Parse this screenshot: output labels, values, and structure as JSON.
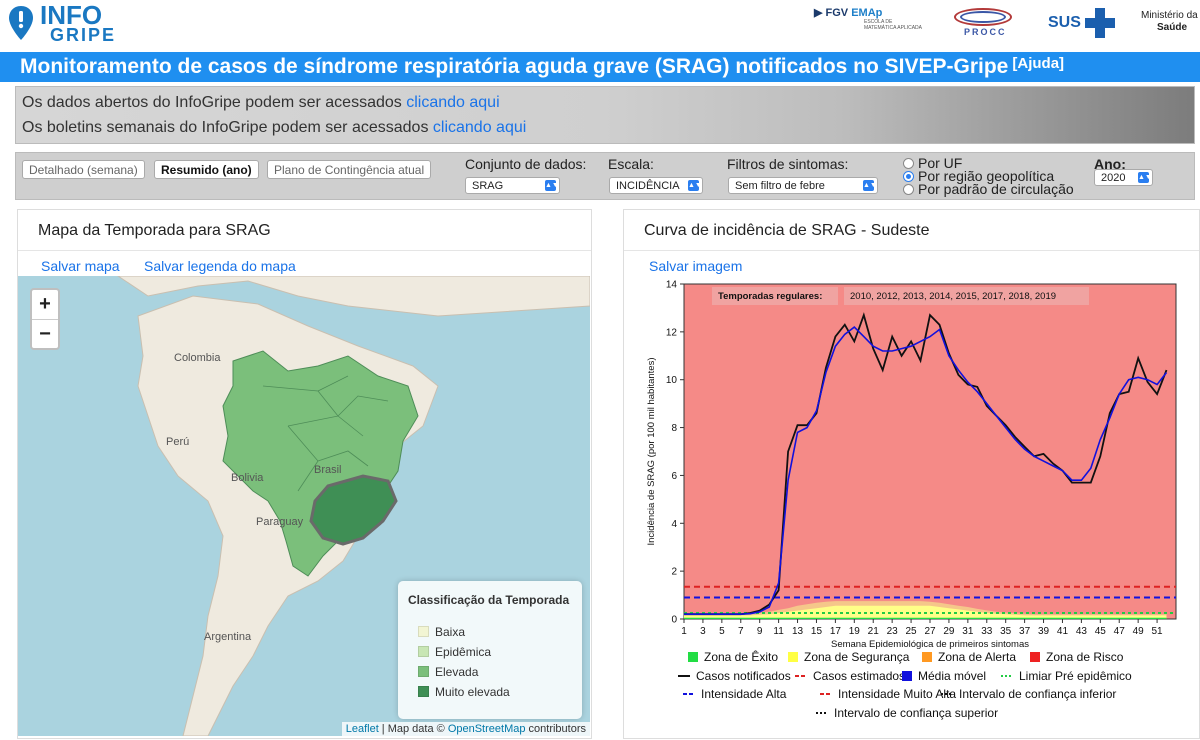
{
  "header": {
    "logo_top": "INFO",
    "logo_bottom": "GRIPE",
    "fgv": "FGV",
    "emap": "EMAp",
    "emap_sub": "ESCOLA DE MATEMÁTICA APLICADA",
    "procc": "PROCC",
    "sus": "SUS",
    "ministerio_1": "Ministério da",
    "ministerio_2": "Saúde"
  },
  "title": "Monitoramento de casos de síndrome respiratória aguda grave (SRAG) notificados no SIVEP-Gripe",
  "help_link": "[Ajuda]",
  "info": {
    "line1": "Os dados abertos do InfoGripe podem ser acessados ",
    "line1_link": "clicando aqui",
    "line2": "Os boletins semanais do InfoGripe podem ser acessados ",
    "line2_link": "clicando aqui"
  },
  "controls": {
    "tabs": [
      "Detalhado (semana)",
      "Resumido (ano)",
      "Plano de Contingência atual"
    ],
    "dataset_label": "Conjunto de dados:",
    "dataset_value": "SRAG",
    "scale_label": "Escala:",
    "scale_value": "INCIDÊNCIA",
    "filter_label": "Filtros de sintomas:",
    "filter_value": "Sem filtro de febre",
    "radios": [
      "Por UF",
      "Por região geopolítica",
      "Por padrão de circulação"
    ],
    "year_label": "Ano:",
    "year_value": "2020"
  },
  "map_panel": {
    "title": "Mapa da Temporada para SRAG",
    "save_map": "Salvar mapa",
    "save_legend": "Salvar legenda do mapa",
    "zoom_in": "+",
    "zoom_out": "−",
    "labels": [
      "Colombia",
      "Perú",
      "Bolivia",
      "Paraguay",
      "Argentina",
      "Brasil"
    ],
    "legend_title": "Classificação da Temporada",
    "legend_items": [
      {
        "label": "Baixa",
        "color": "#f2f5d3"
      },
      {
        "label": "Epidêmica",
        "color": "#c8e6b4"
      },
      {
        "label": "Elevada",
        "color": "#7bbf7b"
      },
      {
        "label": "Muito elevada",
        "color": "#3f8f55"
      }
    ],
    "attribution_leaflet": "Leaflet",
    "attribution_text": " | Map data © ",
    "attribution_osm": "OpenStreetMap",
    "attribution_tail": " contributors"
  },
  "chart_panel": {
    "title": "Curva de incidência de SRAG - Sudeste",
    "save_image": "Salvar imagem",
    "legend": [
      {
        "label": "Zona de Êxito",
        "color": "#22dd44",
        "kind": "box"
      },
      {
        "label": "Zona de Segurança",
        "color": "#ffff44",
        "kind": "box"
      },
      {
        "label": "Zona de Alerta",
        "color": "#ff9922",
        "kind": "box"
      },
      {
        "label": "Zona de Risco",
        "color": "#ee2222",
        "kind": "box"
      },
      {
        "label": "Casos notificados",
        "color": "#111111",
        "kind": "line"
      },
      {
        "label": "Casos estimados",
        "color": "#dd2222",
        "kind": "dash"
      },
      {
        "label": "Média móvel",
        "color": "#1111dd",
        "kind": "box"
      },
      {
        "label": "Limiar Pré epidêmico",
        "color": "#22cc44",
        "kind": "dot"
      },
      {
        "label": "Intensidade Alta",
        "color": "#1111dd",
        "kind": "dash"
      },
      {
        "label": "Intensidade Muito Alta",
        "color": "#dd2222",
        "kind": "dash"
      },
      {
        "label": "Intervalo de confiança inferior",
        "color": "#111111",
        "kind": "dot"
      },
      {
        "label": "Intervalo de confiança superior",
        "color": "#111111",
        "kind": "dot"
      }
    ]
  },
  "chart_data": {
    "type": "line",
    "title": "",
    "xlabel": "Semana Epidemiológica de primeiros sintomas",
    "ylabel": "Incidência de SRAG (por 100 mil habitantes)",
    "xlim": [
      1,
      53
    ],
    "ylim": [
      0,
      14
    ],
    "yticks": [
      0,
      2,
      4,
      6,
      8,
      10,
      12,
      14
    ],
    "xticks": [
      1,
      3,
      5,
      7,
      9,
      11,
      13,
      15,
      17,
      19,
      21,
      23,
      25,
      27,
      29,
      31,
      33,
      35,
      37,
      39,
      41,
      43,
      45,
      47,
      49,
      51
    ],
    "annotation_label": "Temporadas regulares:",
    "annotation_value": "2010, 2012, 2013, 2014, 2015, 2017, 2018, 2019",
    "thresholds": {
      "limiar_pre_epidemico": 0.25,
      "intensidade_alta": 0.9,
      "intensidade_muito_alta": 1.35
    },
    "x": [
      1,
      2,
      3,
      4,
      5,
      6,
      7,
      8,
      9,
      10,
      11,
      12,
      13,
      14,
      15,
      16,
      17,
      18,
      19,
      20,
      21,
      22,
      23,
      24,
      25,
      26,
      27,
      28,
      29,
      30,
      31,
      32,
      33,
      34,
      35,
      36,
      37,
      38,
      39,
      40,
      41,
      42,
      43,
      44,
      45,
      46,
      47,
      48,
      49,
      50,
      51,
      52
    ],
    "series": [
      {
        "name": "Casos notificados",
        "color": "#111111",
        "values": [
          0.2,
          0.2,
          0.2,
          0.2,
          0.2,
          0.2,
          0.2,
          0.25,
          0.35,
          0.6,
          1.2,
          7.0,
          8.1,
          8.1,
          8.6,
          10.5,
          11.8,
          12.3,
          11.6,
          12.7,
          11.3,
          10.4,
          11.8,
          11.0,
          11.6,
          10.8,
          12.7,
          12.3,
          11.1,
          10.2,
          9.8,
          9.7,
          8.9,
          8.5,
          8.1,
          7.6,
          7.2,
          6.8,
          6.9,
          6.5,
          6.2,
          5.7,
          5.7,
          5.7,
          6.8,
          8.6,
          9.4,
          9.5,
          10.9,
          9.9,
          9.4,
          10.4
        ]
      },
      {
        "name": "Média móvel",
        "color": "#1111dd",
        "values": [
          0.2,
          0.2,
          0.2,
          0.2,
          0.2,
          0.2,
          0.2,
          0.22,
          0.3,
          0.5,
          1.5,
          5.8,
          7.8,
          8.0,
          8.7,
          10.3,
          11.4,
          11.9,
          12.2,
          11.8,
          11.4,
          11.2,
          11.2,
          11.3,
          11.4,
          11.6,
          11.8,
          12.1,
          11.0,
          10.4,
          9.9,
          9.5,
          9.0,
          8.5,
          8.0,
          7.5,
          7.1,
          6.8,
          6.6,
          6.4,
          6.2,
          5.8,
          5.8,
          6.3,
          7.5,
          8.4,
          9.4,
          10.0,
          10.1,
          10.0,
          9.8,
          10.3
        ]
      }
    ],
    "zones": [
      {
        "name": "Zona de Êxito",
        "color": "#22dd44",
        "values": [
          0.05,
          0.05,
          0.05,
          0.05,
          0.05,
          0.05,
          0.05,
          0.05,
          0.05,
          0.05,
          0.05,
          0.05,
          0.05,
          0.05,
          0.05,
          0.05,
          0.05,
          0.05,
          0.05,
          0.05,
          0.05,
          0.05,
          0.05,
          0.05,
          0.05,
          0.05,
          0.05,
          0.05,
          0.05,
          0.05,
          0.05,
          0.05,
          0.05,
          0.05,
          0.05,
          0.05,
          0.05,
          0.05,
          0.05,
          0.05,
          0.05,
          0.05,
          0.05,
          0.05,
          0.05,
          0.05,
          0.05,
          0.05,
          0.05,
          0.05,
          0.05,
          0.05
        ]
      },
      {
        "name": "Zona de Segurança",
        "color": "#ffff88",
        "values": [
          0.15,
          0.15,
          0.15,
          0.15,
          0.15,
          0.15,
          0.15,
          0.15,
          0.18,
          0.2,
          0.25,
          0.3,
          0.35,
          0.4,
          0.45,
          0.5,
          0.55,
          0.55,
          0.55,
          0.55,
          0.55,
          0.55,
          0.55,
          0.55,
          0.55,
          0.55,
          0.55,
          0.5,
          0.45,
          0.4,
          0.35,
          0.3,
          0.25,
          0.22,
          0.2,
          0.18,
          0.15,
          0.15,
          0.15,
          0.15,
          0.15,
          0.15,
          0.15,
          0.15,
          0.15,
          0.15,
          0.15,
          0.15,
          0.15,
          0.15,
          0.15,
          0.15
        ]
      },
      {
        "name": "Zona de Alerta",
        "color": "#f5c78a",
        "values": [
          0.2,
          0.2,
          0.2,
          0.2,
          0.2,
          0.2,
          0.2,
          0.22,
          0.26,
          0.3,
          0.38,
          0.45,
          0.55,
          0.62,
          0.68,
          0.72,
          0.75,
          0.75,
          0.75,
          0.75,
          0.75,
          0.75,
          0.75,
          0.75,
          0.75,
          0.75,
          0.72,
          0.68,
          0.62,
          0.55,
          0.5,
          0.42,
          0.36,
          0.3,
          0.27,
          0.24,
          0.22,
          0.2,
          0.2,
          0.2,
          0.2,
          0.2,
          0.2,
          0.2,
          0.2,
          0.2,
          0.2,
          0.2,
          0.2,
          0.2,
          0.2,
          0.2
        ]
      }
    ]
  }
}
